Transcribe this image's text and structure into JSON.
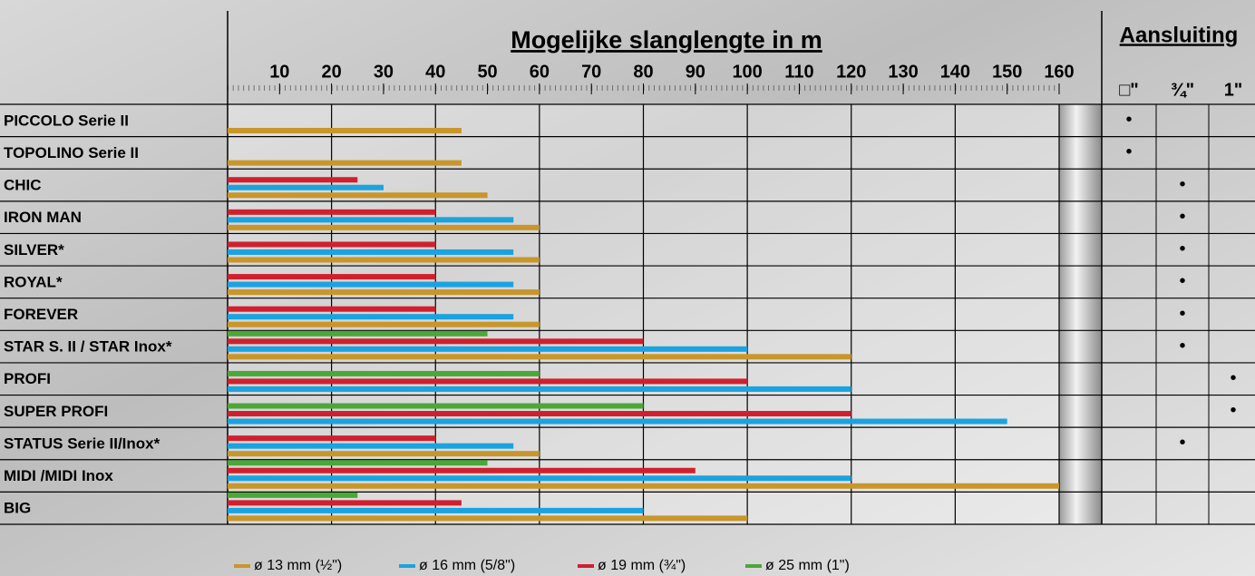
{
  "chart_data": {
    "type": "hbar",
    "title": "Mogelijke slanglengte in m",
    "categories": [
      "PICCOLO Serie II",
      "TOPOLINO Serie II",
      "CHIC",
      "IRON MAN",
      "SILVER*",
      "ROYAL*",
      "FOREVER",
      "STAR S. II / STAR Inox*",
      "PROFI",
      "SUPER PROFI",
      "STATUS Serie II/Inox*",
      "MIDI /MIDI Inox",
      "BIG"
    ],
    "series": [
      {
        "name": "ø 13 mm (½\")",
        "color": "#c8962a",
        "values": [
          45,
          45,
          50,
          60,
          60,
          60,
          60,
          120,
          null,
          null,
          60,
          160,
          100
        ]
      },
      {
        "name": "ø 16 mm (5/8\")",
        "color": "#1aa3e0",
        "values": [
          null,
          null,
          30,
          55,
          55,
          55,
          55,
          100,
          120,
          150,
          55,
          120,
          80
        ]
      },
      {
        "name": "ø 19 mm (¾\")",
        "color": "#d0202e",
        "values": [
          null,
          null,
          25,
          40,
          40,
          40,
          40,
          80,
          100,
          120,
          40,
          90,
          45
        ]
      },
      {
        "name": "ø 25 mm (1\")",
        "color": "#4aa838",
        "values": [
          null,
          null,
          null,
          null,
          null,
          null,
          null,
          50,
          60,
          80,
          null,
          50,
          25
        ]
      }
    ],
    "xlim": [
      0,
      160
    ],
    "xticks": [
      10,
      20,
      30,
      40,
      50,
      60,
      70,
      80,
      90,
      100,
      110,
      120,
      130,
      140,
      150,
      160
    ],
    "grid": true
  },
  "aansluiting": {
    "title": "Aansluiting",
    "columns": [
      "□\"",
      "¾\"",
      "1\""
    ],
    "rows": [
      [
        "•",
        null,
        null
      ],
      [
        "•",
        null,
        null
      ],
      [
        null,
        "•",
        null
      ],
      [
        null,
        "•",
        null
      ],
      [
        null,
        "•",
        null
      ],
      [
        null,
        "•",
        null
      ],
      [
        null,
        "•",
        null
      ],
      [
        null,
        "•",
        null
      ],
      [
        null,
        null,
        "•"
      ],
      [
        null,
        null,
        "•"
      ],
      [
        null,
        "•",
        null
      ],
      [
        null,
        null,
        null
      ],
      [
        null,
        null,
        null
      ]
    ]
  }
}
